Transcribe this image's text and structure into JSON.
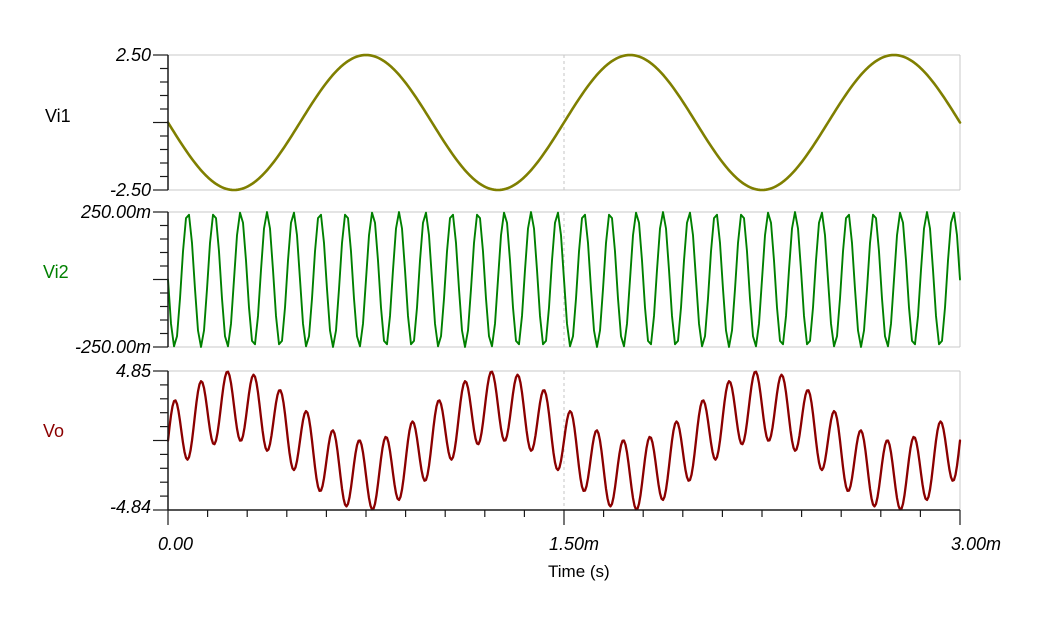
{
  "chart_data": {
    "type": "line",
    "title": "",
    "xlabel": "Time (s)",
    "x_range_s": [
      0,
      0.003
    ],
    "x_ticks": [
      {
        "t": 0,
        "label": "0.00"
      },
      {
        "t": 0.0015,
        "label": "1.50m"
      },
      {
        "t": 0.003,
        "label": "3.00m"
      }
    ],
    "grid": {
      "vertical_dashed_at_s": 0.0015,
      "panel_borders": true
    },
    "panels": [
      {
        "name": "Vi1",
        "color": "#7f7f00",
        "label_color": "#000000",
        "ylim": [
          -2.5,
          2.5
        ],
        "yticks": [
          {
            "value": 2.5,
            "label": "2.50"
          },
          {
            "value": -2.5,
            "label": "-2.50"
          }
        ],
        "signal": {
          "type": "sine_sum",
          "components": [
            {
              "amplitude_v": 2.5,
              "frequency_hz": 1000,
              "phase_deg": 180
            }
          ]
        }
      },
      {
        "name": "Vi2",
        "color": "#008000",
        "label_color": "#008000",
        "ylim": [
          -0.25,
          0.25
        ],
        "yticks": [
          {
            "value": 0.25,
            "label": "250.00m"
          },
          {
            "value": -0.25,
            "label": "-250.00m"
          }
        ],
        "signal": {
          "type": "sine_sum",
          "components": [
            {
              "amplitude_v": 0.25,
              "frequency_hz": 10000,
              "phase_deg": 180
            }
          ]
        }
      },
      {
        "name": "Vo",
        "color": "#8b0000",
        "label_color": "#8b0000",
        "ylim": [
          -4.84,
          4.85
        ],
        "yticks": [
          {
            "value": 4.85,
            "label": "4.85"
          },
          {
            "value": -4.84,
            "label": "-4.84"
          }
        ],
        "signal": {
          "type": "sine_sum",
          "components": [
            {
              "amplitude_v": 2.425,
              "frequency_hz": 1000,
              "phase_deg": 0
            },
            {
              "amplitude_v": 2.425,
              "frequency_hz": 10000,
              "phase_deg": 0
            }
          ]
        }
      }
    ]
  }
}
